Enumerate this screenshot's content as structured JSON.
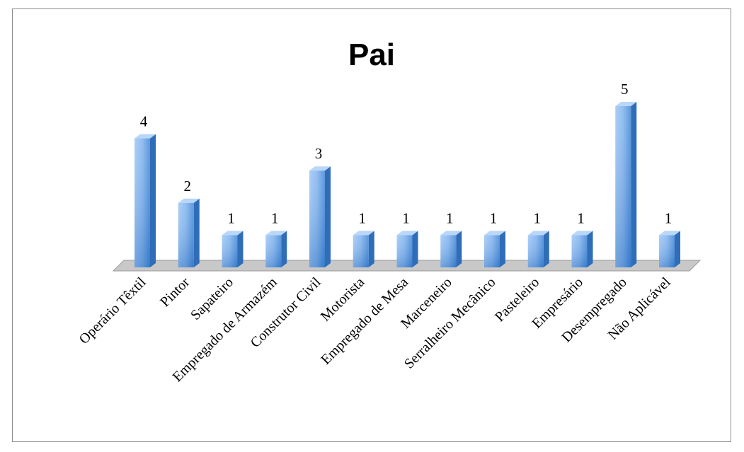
{
  "chart_data": {
    "type": "bar3d",
    "title": "Pai",
    "categories": [
      "Operário Têxtil",
      "Pintor",
      "Sapateiro",
      "Empregado de Armazém",
      "Construtor Civil",
      "Motorista",
      "Empregado de Mesa",
      "Marceneiro",
      "Serralheiro Mecânico",
      "Pasteleiro",
      "Empresário",
      "Desempregado",
      "Não Aplicável"
    ],
    "values": [
      4,
      2,
      1,
      1,
      3,
      1,
      1,
      1,
      1,
      1,
      1,
      5,
      1
    ],
    "color": "#5b9bd5"
  }
}
